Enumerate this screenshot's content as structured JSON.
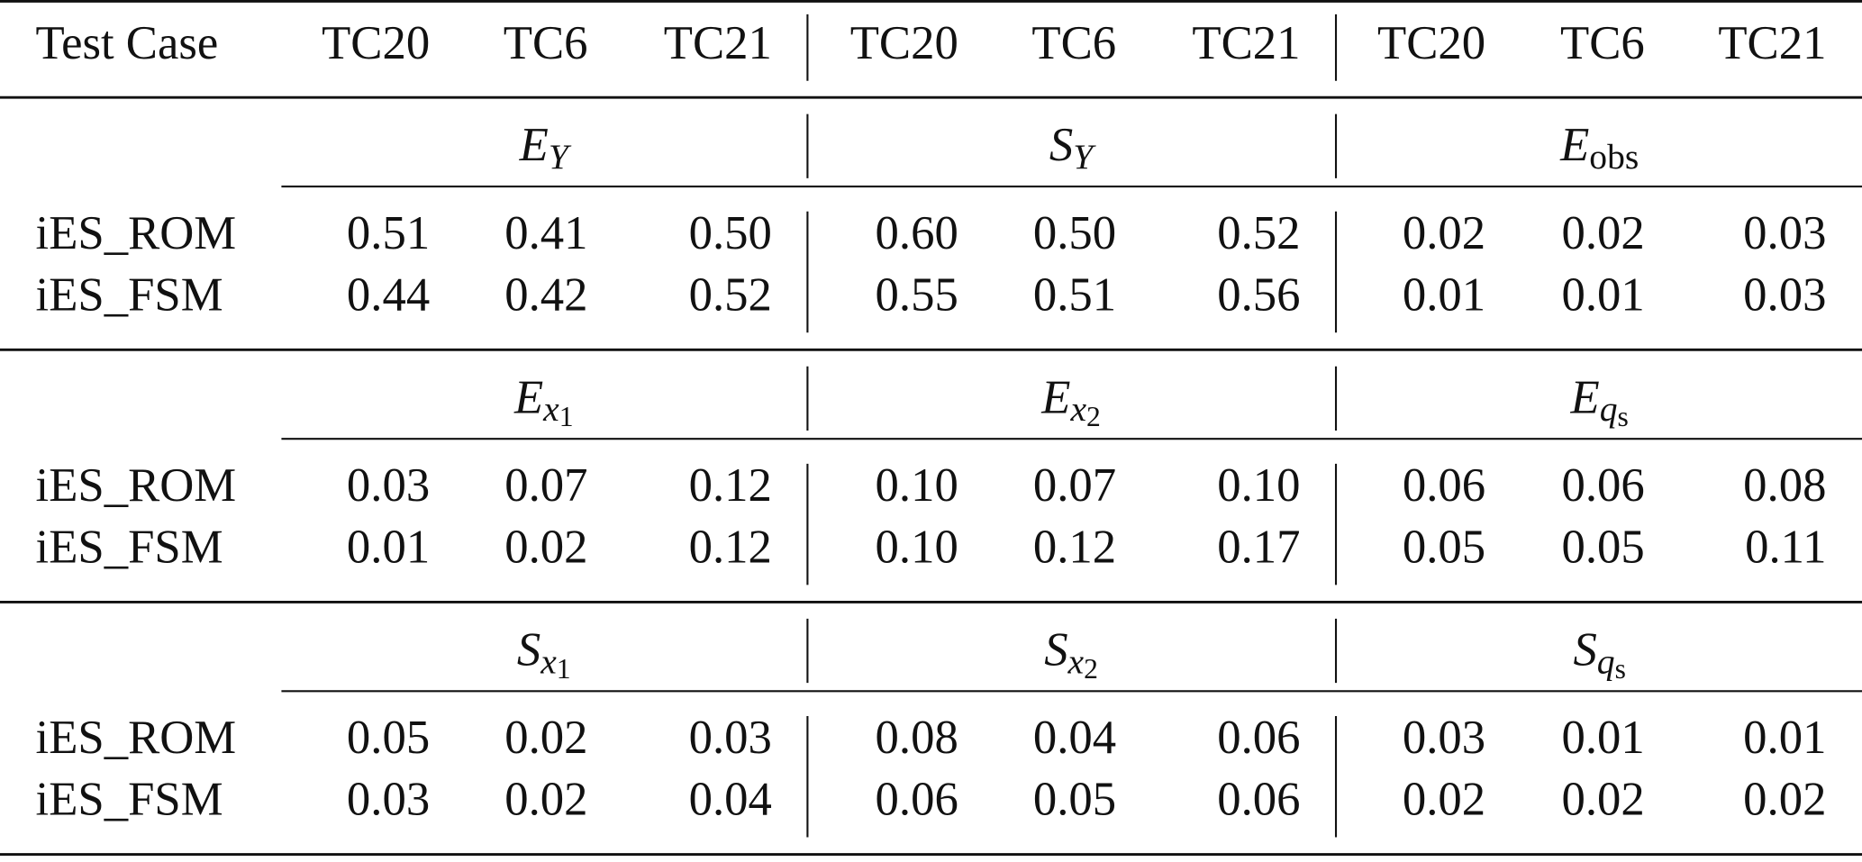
{
  "table": {
    "header": [
      "Test Case",
      "TC20",
      "TC6",
      "TC21",
      "TC20",
      "TC6",
      "TC21",
      "TC20",
      "TC6",
      "TC21"
    ],
    "sections": [
      {
        "groups": [
          {
            "base": "E",
            "sub": "Y"
          },
          {
            "base": "S",
            "sub": "Y"
          },
          {
            "base": "E",
            "sub": "obs"
          }
        ],
        "rows": [
          {
            "label": "iES_ROM",
            "values": [
              "0.51",
              "0.41",
              "0.50",
              "0.60",
              "0.50",
              "0.52",
              "0.02",
              "0.02",
              "0.03"
            ]
          },
          {
            "label": "iES_FSM",
            "values": [
              "0.44",
              "0.42",
              "0.52",
              "0.55",
              "0.51",
              "0.56",
              "0.01",
              "0.01",
              "0.03"
            ]
          }
        ]
      },
      {
        "groups": [
          {
            "base": "E",
            "sub": "x",
            "subsub": "1"
          },
          {
            "base": "E",
            "sub": "x",
            "subsub": "2"
          },
          {
            "base": "E",
            "sub": "q",
            "subsub": "s"
          }
        ],
        "rows": [
          {
            "label": "iES_ROM",
            "values": [
              "0.03",
              "0.07",
              "0.12",
              "0.10",
              "0.07",
              "0.10",
              "0.06",
              "0.06",
              "0.08"
            ]
          },
          {
            "label": "iES_FSM",
            "values": [
              "0.01",
              "0.02",
              "0.12",
              "0.10",
              "0.12",
              "0.17",
              "0.05",
              "0.05",
              "0.11"
            ]
          }
        ]
      },
      {
        "groups": [
          {
            "base": "S",
            "sub": "x",
            "subsub": "1"
          },
          {
            "base": "S",
            "sub": "x",
            "subsub": "2"
          },
          {
            "base": "S",
            "sub": "q",
            "subsub": "s"
          }
        ],
        "rows": [
          {
            "label": "iES_ROM",
            "values": [
              "0.05",
              "0.02",
              "0.03",
              "0.08",
              "0.04",
              "0.06",
              "0.03",
              "0.01",
              "0.01"
            ]
          },
          {
            "label": "iES_FSM",
            "values": [
              "0.03",
              "0.02",
              "0.04",
              "0.06",
              "0.05",
              "0.06",
              "0.02",
              "0.02",
              "0.02"
            ]
          }
        ]
      }
    ]
  }
}
